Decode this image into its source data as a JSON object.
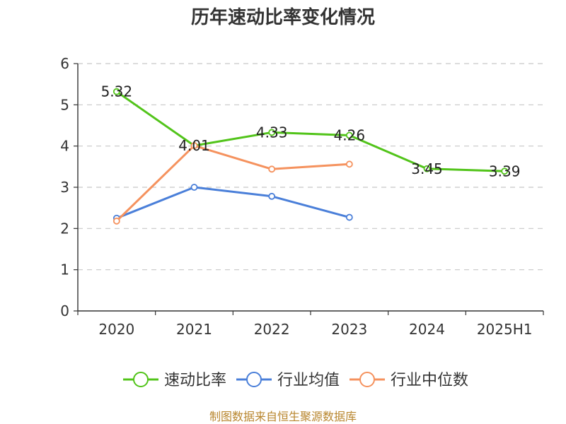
{
  "chart_data": {
    "type": "line",
    "title": "历年速动比率变化情况",
    "categories": [
      "2020",
      "2021",
      "2022",
      "2023",
      "2024",
      "2025H1"
    ],
    "ylim": [
      0,
      6
    ],
    "yticks": [
      0,
      1,
      2,
      3,
      4,
      5,
      6
    ],
    "grid": true,
    "legend_position": "bottom",
    "series": [
      {
        "name": "速动比率",
        "color": "#52c41a",
        "values": [
          5.32,
          4.01,
          4.33,
          4.26,
          3.45,
          3.39
        ],
        "show_labels": true
      },
      {
        "name": "行业均值",
        "color": "#4a7fd9",
        "values": [
          2.25,
          3.0,
          2.78,
          2.27,
          null,
          null
        ],
        "show_labels": false
      },
      {
        "name": "行业中位数",
        "color": "#f5925e",
        "values": [
          2.18,
          4.01,
          3.44,
          3.56,
          null,
          null
        ],
        "show_labels": false
      }
    ],
    "source": "制图数据来自恒生聚源数据库"
  }
}
